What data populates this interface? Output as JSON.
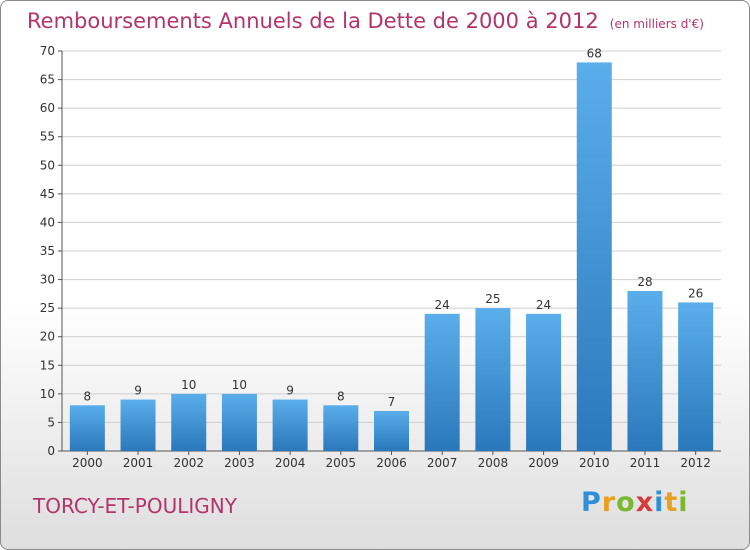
{
  "header": {
    "title": "Remboursements Annuels de la Dette de 2000 à 2012",
    "unit": "(en milliers d'€)"
  },
  "footer": {
    "commune": "TORCY-ET-POULIGNY",
    "brand": {
      "letters": [
        "P",
        "r",
        "o",
        "x",
        "i",
        "t",
        "i"
      ],
      "colors": [
        "#2f8fd8",
        "#e8a020",
        "#7ab830",
        "#d83a3a",
        "#2f8fd8",
        "#e8a020",
        "#7ab830"
      ]
    }
  },
  "colors": {
    "bar_top": "#5aaeea",
    "bar_bottom": "#2a78bc",
    "title": "#b5336b",
    "grid": "#cfcfcf"
  },
  "chart_data": {
    "type": "bar",
    "categories": [
      "2000",
      "2001",
      "2002",
      "2003",
      "2004",
      "2005",
      "2006",
      "2007",
      "2008",
      "2009",
      "2010",
      "2011",
      "2012"
    ],
    "values": [
      8,
      9,
      10,
      10,
      9,
      8,
      7,
      24,
      25,
      24,
      68,
      28,
      26
    ],
    "title": "Remboursements Annuels de la Dette de 2000 à 2012",
    "subtitle": "(en milliers d'€)",
    "xlabel": "",
    "ylabel": "",
    "ylim": [
      0,
      70
    ],
    "yticks": [
      0,
      5,
      10,
      15,
      20,
      25,
      30,
      35,
      40,
      45,
      50,
      55,
      60,
      65,
      70
    ],
    "grid": true,
    "data_labels": true
  }
}
